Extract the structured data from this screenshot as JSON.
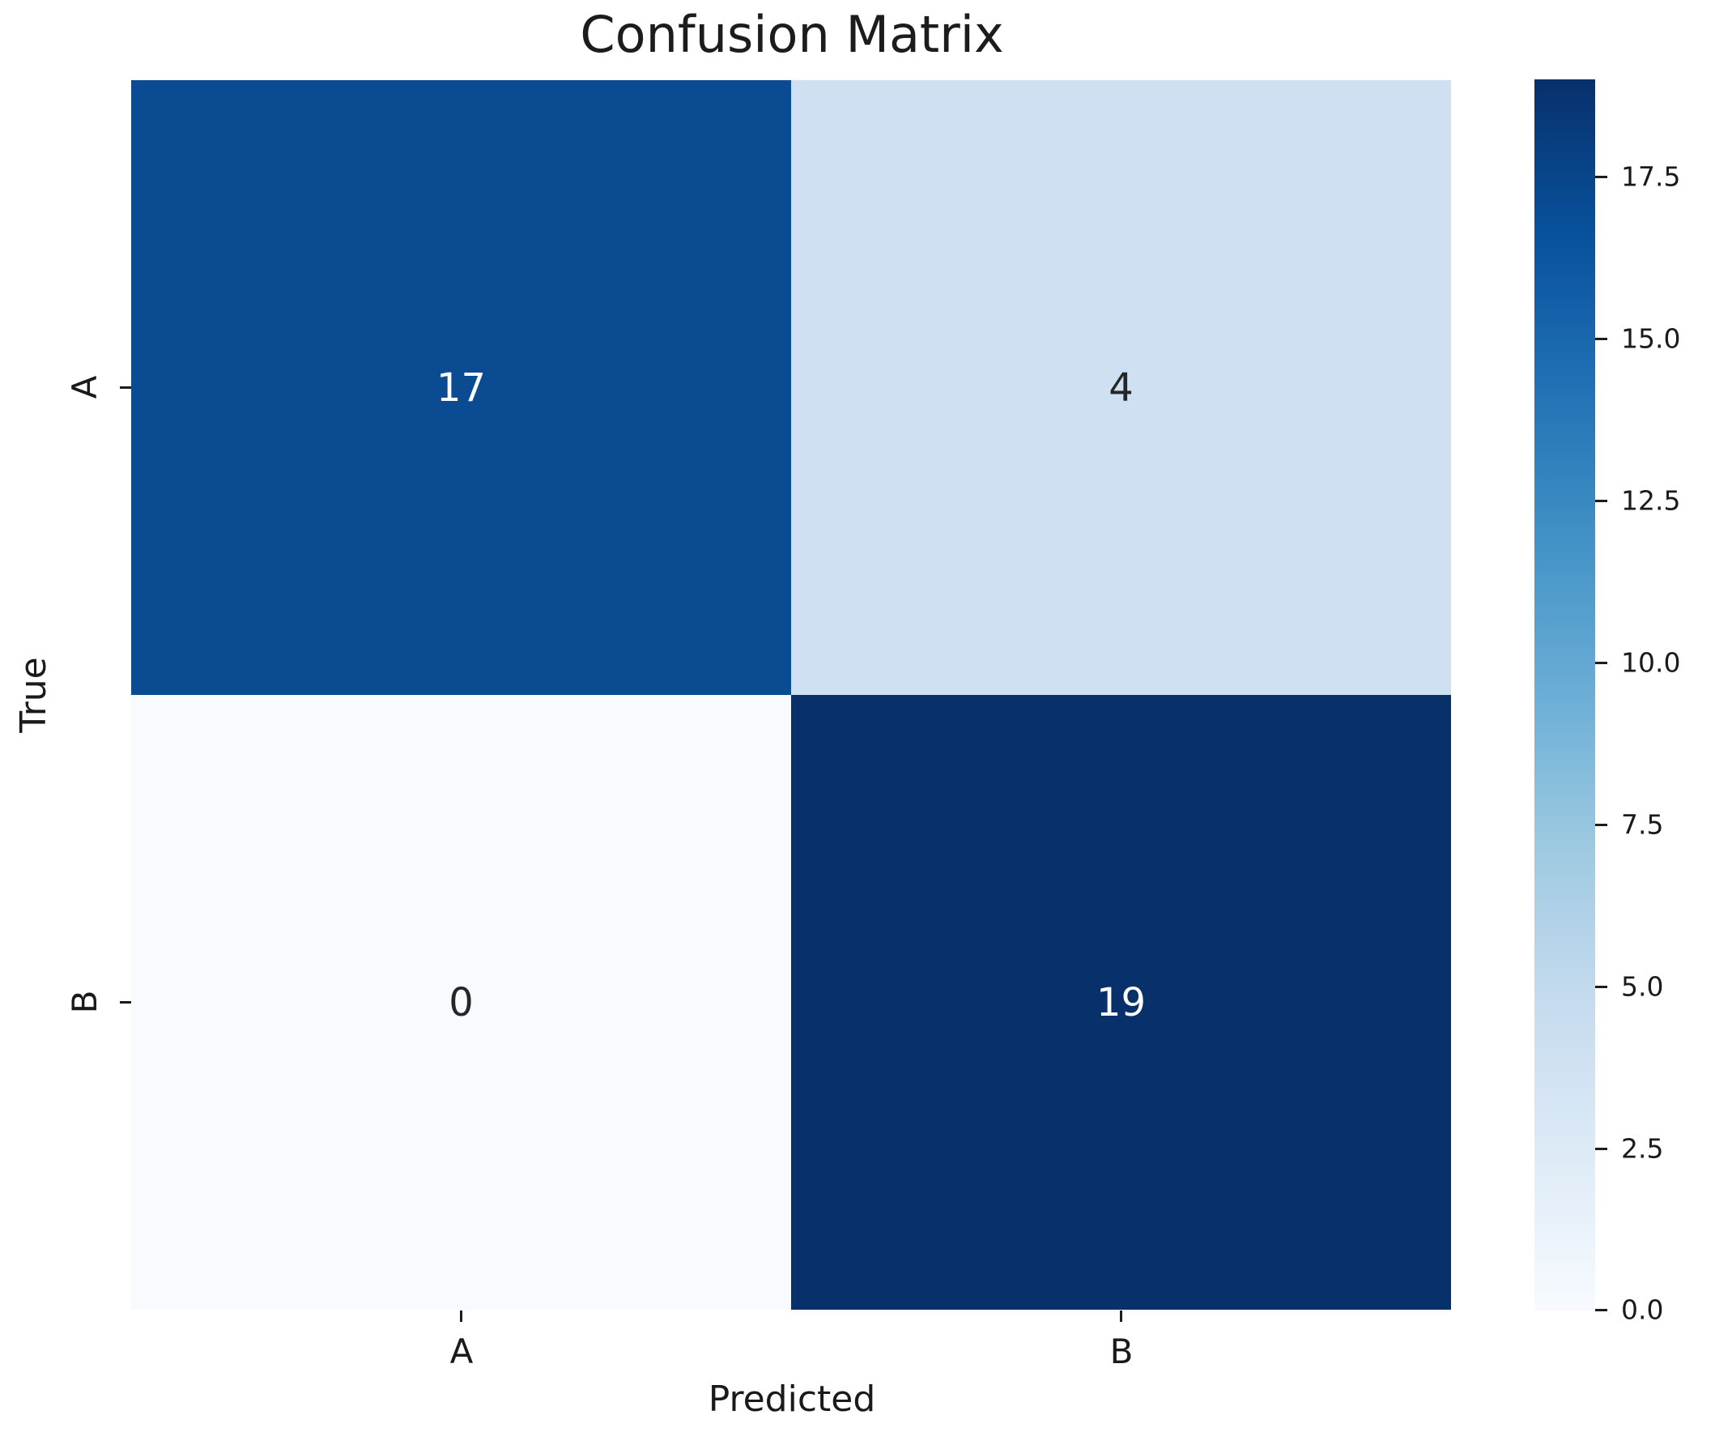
{
  "chart_data": {
    "type": "heatmap",
    "title": "Confusion Matrix",
    "xlabel": "Predicted",
    "ylabel": "True",
    "x_categories": [
      "A",
      "B"
    ],
    "y_categories": [
      "A",
      "B"
    ],
    "matrix": [
      [
        17,
        4
      ],
      [
        0,
        19
      ]
    ],
    "vmin": 0,
    "vmax": 19,
    "colormap": "Blues",
    "colorbar_ticks": [
      "17.5",
      "15.0",
      "12.5",
      "10.0",
      "7.5",
      "5.0",
      "2.5",
      "0.0"
    ],
    "colorbar_position": "right",
    "grid": false,
    "annotated": true
  },
  "cells": [
    {
      "row": "A",
      "col": "A",
      "value": "17",
      "color": "#0b4b92",
      "text_color": "#ffffff"
    },
    {
      "row": "A",
      "col": "B",
      "value": "4",
      "color": "#cee0f1",
      "text_color": "#262626"
    },
    {
      "row": "B",
      "col": "A",
      "value": "0",
      "color": "#f7fbff",
      "text_color": "#262626"
    },
    {
      "row": "B",
      "col": "B",
      "value": "19",
      "color": "#08306b",
      "text_color": "#ffffff"
    }
  ],
  "colors": {
    "background": "#ffffff",
    "text": "#1c1c1c",
    "colormap_min": "#f7fbff",
    "colormap_max": "#08306b"
  }
}
